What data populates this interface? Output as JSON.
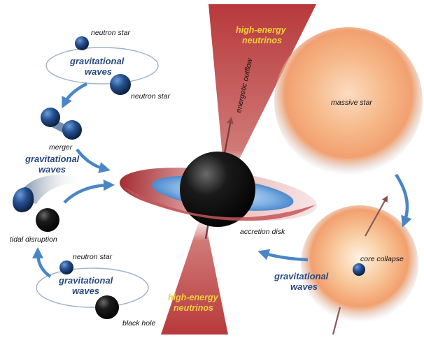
{
  "labels": {
    "neutron_star_top": "neutron star",
    "neutron_star_right": "neutron star",
    "gravitational_waves_top": [
      "gravitational",
      "waves"
    ],
    "merger": "merger",
    "gravitational_waves_mid": [
      "gravitational",
      "waves"
    ],
    "tidal_disruption": "tidal disruption",
    "neutron_star_bottom": "neutron star",
    "gravitational_waves_bottom": [
      "gravitational",
      "waves"
    ],
    "black_hole": "black hole",
    "high_energy_neutrinos_top": [
      "high-energy",
      "neutrinos"
    ],
    "energetic_outflow": "energetic outflow",
    "accretion_disk": "accretion disk",
    "high_energy_neutrinos_bottom": [
      "high-energy",
      "neutrinos"
    ],
    "massive_star": "massive star",
    "core_collapse": "core collapse",
    "gravitational_waves_right": [
      "gravitational",
      "waves"
    ]
  },
  "colors": {
    "arrow_blue": "#4a86c5",
    "gw_text": "#2a4a82",
    "neutrino_text": "#f2d23a",
    "jet_red": "#b83a3c",
    "star_orange": "#f4a86a"
  }
}
